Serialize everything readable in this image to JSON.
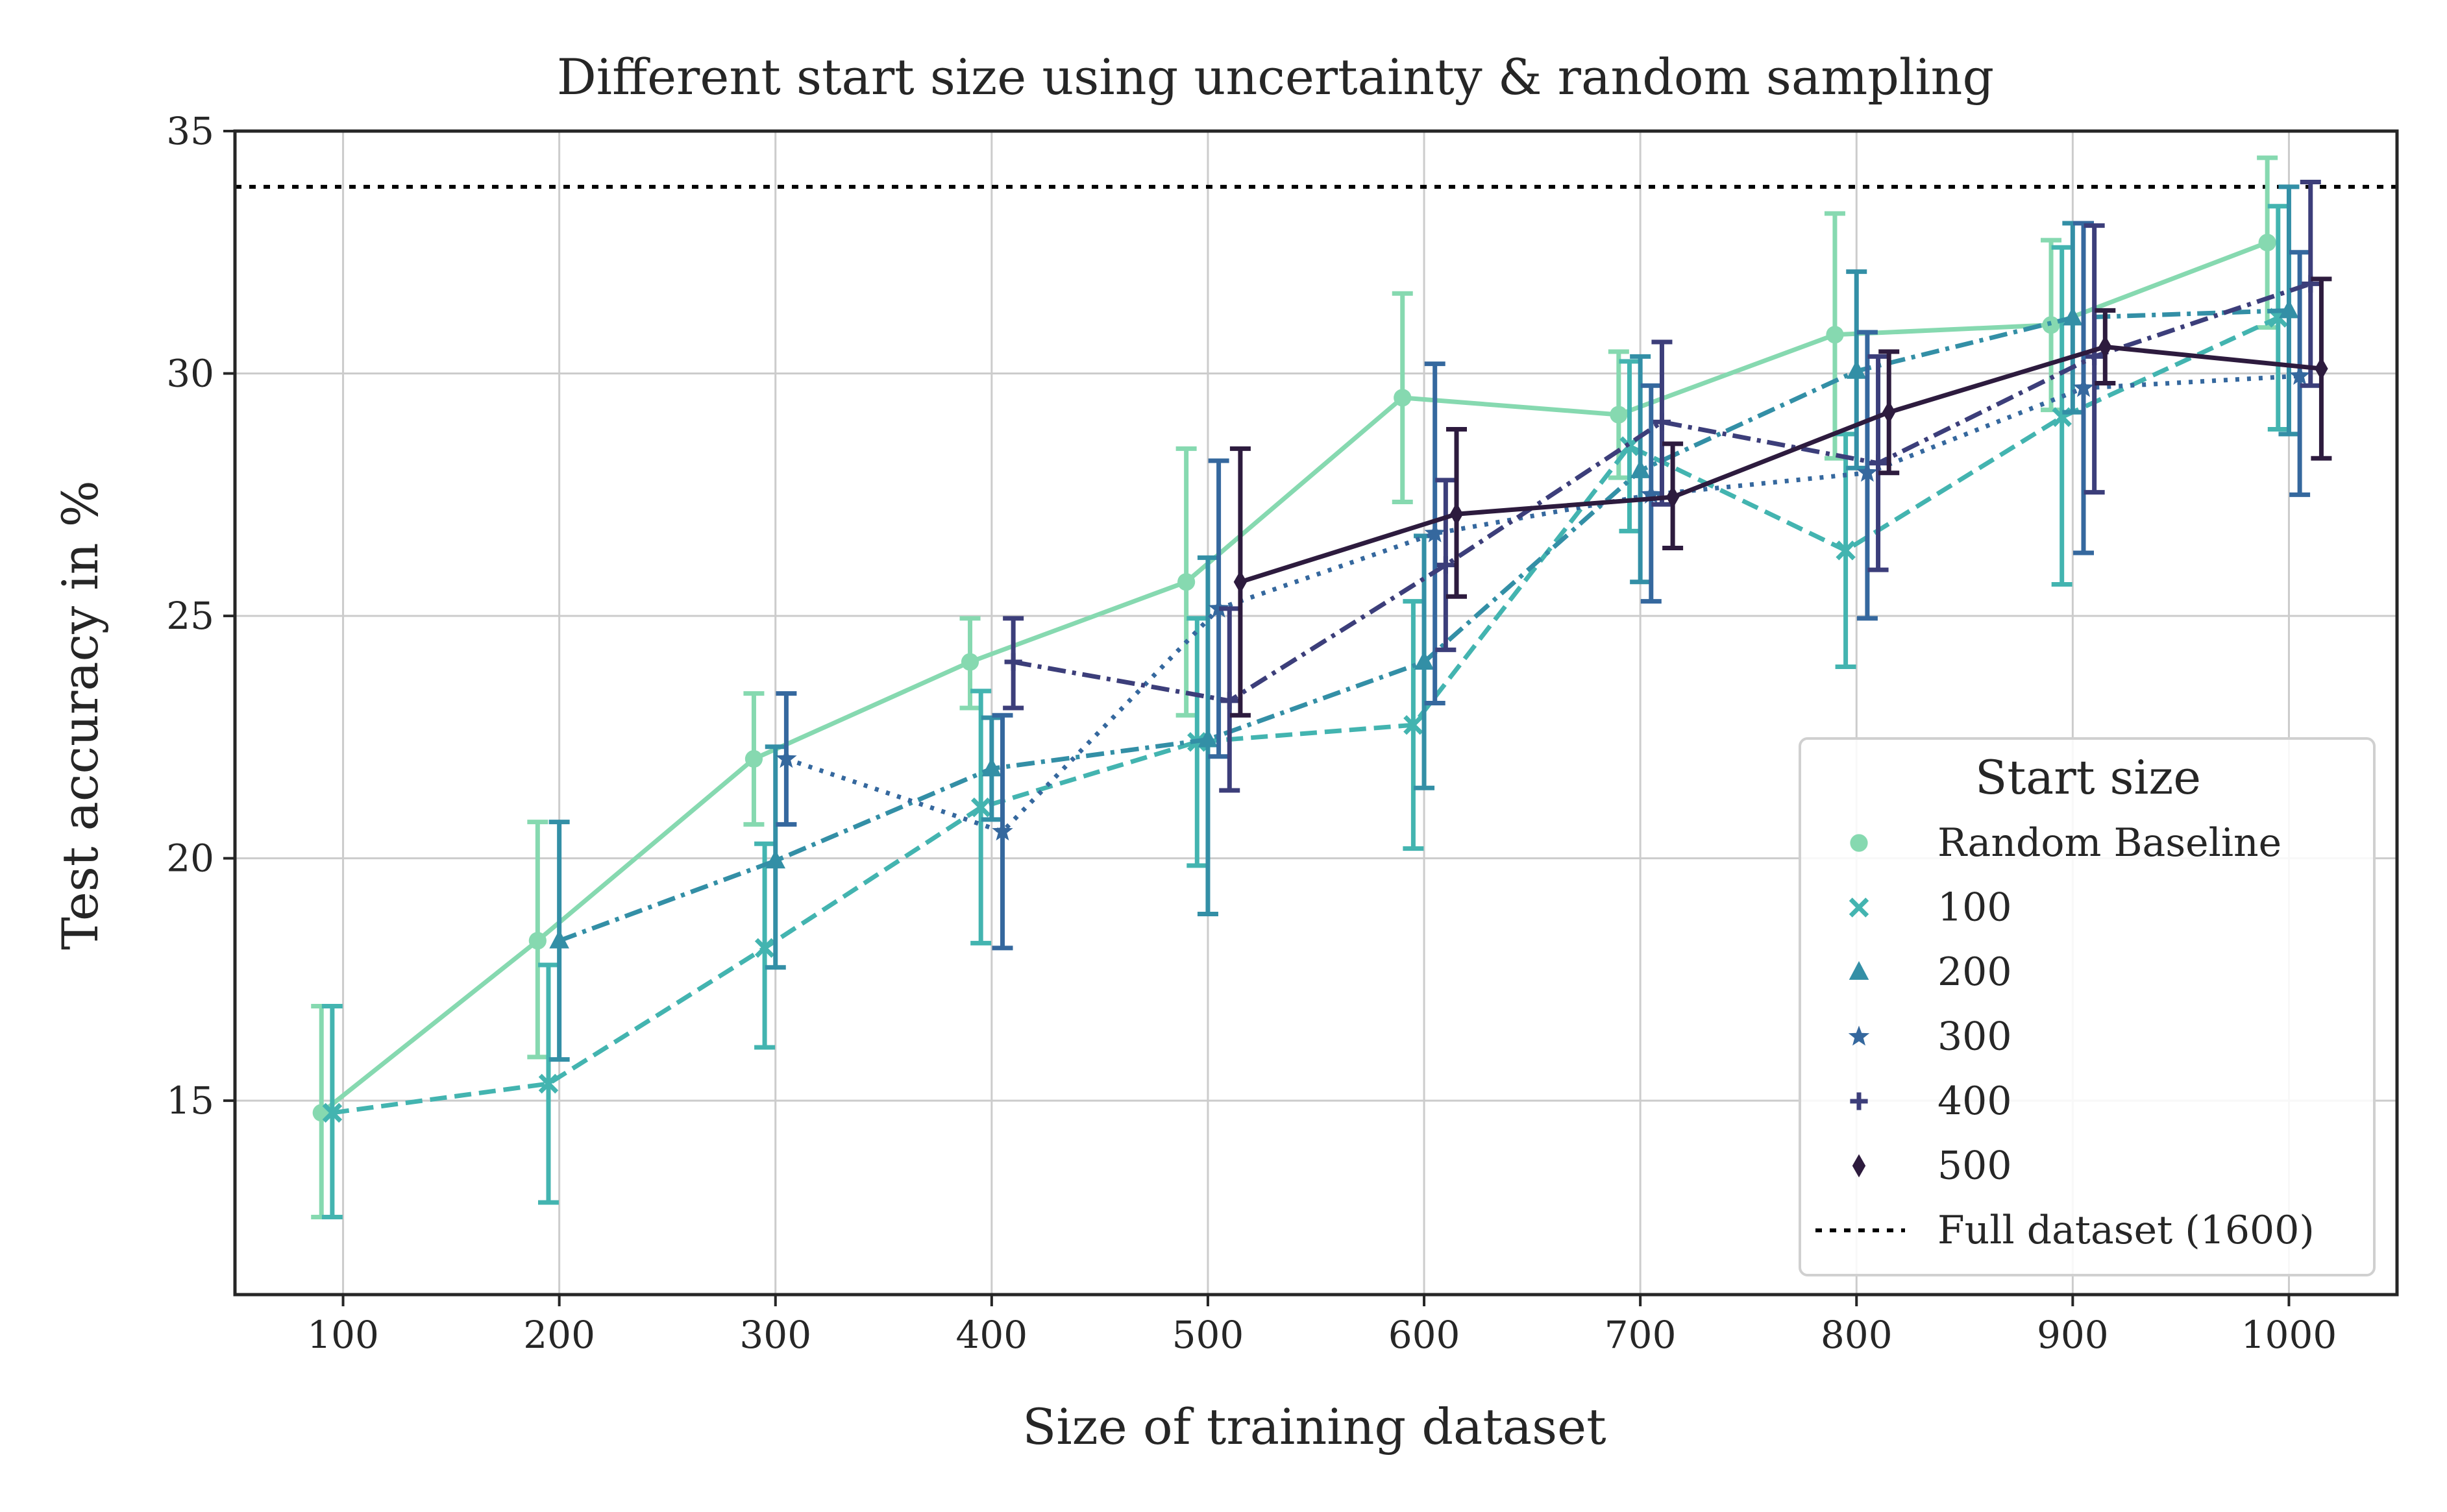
{
  "chart_data": {
    "type": "line",
    "title": "Different start size using uncertainty & random sampling",
    "xlabel": "Size of training dataset",
    "ylabel": "Test accuracy in %",
    "xlim": [
      50,
      1050
    ],
    "ylim": [
      11,
      35
    ],
    "x_ticks": [
      100,
      200,
      300,
      400,
      500,
      600,
      700,
      800,
      900,
      1000
    ],
    "y_ticks": [
      15,
      20,
      25,
      30,
      35
    ],
    "grid": true,
    "legend": {
      "title": "Start size",
      "position": "lower-right"
    },
    "reference_line": {
      "name": "Full dataset (1600)",
      "y": 33.85,
      "style": "dotted",
      "color": "#000000"
    },
    "series": [
      {
        "name": "Random Baseline",
        "color": "#86d9b0",
        "marker": "circle",
        "dash": "solid",
        "points": [
          {
            "x": 90,
            "y": 14.75,
            "lo": 12.6,
            "hi": 16.95
          },
          {
            "x": 190,
            "y": 18.3,
            "lo": 15.9,
            "hi": 20.75
          },
          {
            "x": 290,
            "y": 22.05,
            "lo": 20.7,
            "hi": 23.4
          },
          {
            "x": 390,
            "y": 24.05,
            "lo": 23.1,
            "hi": 24.95
          },
          {
            "x": 490,
            "y": 25.7,
            "lo": 22.95,
            "hi": 28.45
          },
          {
            "x": 590,
            "y": 29.5,
            "lo": 27.35,
            "hi": 31.65
          },
          {
            "x": 690,
            "y": 29.15,
            "lo": 27.85,
            "hi": 30.45
          },
          {
            "x": 790,
            "y": 30.8,
            "lo": 28.25,
            "hi": 33.3
          },
          {
            "x": 890,
            "y": 31.0,
            "lo": 29.25,
            "hi": 32.75
          },
          {
            "x": 990,
            "y": 32.7,
            "lo": 30.95,
            "hi": 34.45
          }
        ]
      },
      {
        "name": "100",
        "color": "#43b4b0",
        "marker": "x",
        "dash": "dashed",
        "points": [
          {
            "x": 95,
            "y": 14.75,
            "lo": 12.6,
            "hi": 16.95
          },
          {
            "x": 195,
            "y": 15.35,
            "lo": 12.9,
            "hi": 17.8
          },
          {
            "x": 295,
            "y": 18.15,
            "lo": 16.1,
            "hi": 20.3
          },
          {
            "x": 395,
            "y": 21.05,
            "lo": 18.25,
            "hi": 23.45
          },
          {
            "x": 495,
            "y": 22.4,
            "lo": 19.85,
            "hi": 24.95
          },
          {
            "x": 595,
            "y": 22.75,
            "lo": 20.2,
            "hi": 25.3
          },
          {
            "x": 695,
            "y": 28.5,
            "lo": 26.75,
            "hi": 30.25
          },
          {
            "x": 795,
            "y": 26.35,
            "lo": 23.95,
            "hi": 28.75
          },
          {
            "x": 895,
            "y": 29.1,
            "lo": 25.65,
            "hi": 32.6
          },
          {
            "x": 995,
            "y": 31.15,
            "lo": 28.85,
            "hi": 33.45
          }
        ]
      },
      {
        "name": "200",
        "color": "#338fa6",
        "marker": "triangle",
        "dash": "dashdot",
        "points": [
          {
            "x": 200,
            "y": 18.3,
            "lo": 15.85,
            "hi": 20.75
          },
          {
            "x": 300,
            "y": 19.95,
            "lo": 17.75,
            "hi": 22.3
          },
          {
            "x": 400,
            "y": 21.85,
            "lo": 20.8,
            "hi": 22.9
          },
          {
            "x": 500,
            "y": 22.45,
            "lo": 18.85,
            "hi": 26.2
          },
          {
            "x": 600,
            "y": 24.05,
            "lo": 21.45,
            "hi": 26.65
          },
          {
            "x": 700,
            "y": 28.0,
            "lo": 25.7,
            "hi": 30.35
          },
          {
            "x": 800,
            "y": 30.05,
            "lo": 28.05,
            "hi": 32.1
          },
          {
            "x": 900,
            "y": 31.15,
            "lo": 29.2,
            "hi": 33.1
          },
          {
            "x": 1000,
            "y": 31.3,
            "lo": 28.75,
            "hi": 33.85
          }
        ]
      },
      {
        "name": "300",
        "color": "#35689e",
        "marker": "star",
        "dash": "dotted",
        "points": [
          {
            "x": 305,
            "y": 22.05,
            "lo": 20.7,
            "hi": 23.4
          },
          {
            "x": 405,
            "y": 20.55,
            "lo": 18.15,
            "hi": 22.95
          },
          {
            "x": 505,
            "y": 25.15,
            "lo": 22.1,
            "hi": 28.2
          },
          {
            "x": 605,
            "y": 26.7,
            "lo": 23.2,
            "hi": 30.2
          },
          {
            "x": 705,
            "y": 27.5,
            "lo": 25.3,
            "hi": 29.75
          },
          {
            "x": 805,
            "y": 27.95,
            "lo": 24.95,
            "hi": 30.85
          },
          {
            "x": 905,
            "y": 29.7,
            "lo": 26.3,
            "hi": 33.1
          },
          {
            "x": 1005,
            "y": 29.95,
            "lo": 27.5,
            "hi": 32.5
          }
        ]
      },
      {
        "name": "400",
        "color": "#3c3e7a",
        "marker": "plus",
        "dash": "dashdot",
        "points": [
          {
            "x": 410,
            "y": 24.05,
            "lo": 23.1,
            "hi": 24.95
          },
          {
            "x": 510,
            "y": 23.25,
            "lo": 21.4,
            "hi": 25.15
          },
          {
            "x": 610,
            "y": 26.05,
            "lo": 24.3,
            "hi": 27.8
          },
          {
            "x": 710,
            "y": 29.0,
            "lo": 27.3,
            "hi": 30.65
          },
          {
            "x": 810,
            "y": 28.15,
            "lo": 25.95,
            "hi": 30.35
          },
          {
            "x": 910,
            "y": 30.35,
            "lo": 27.55,
            "hi": 33.05
          },
          {
            "x": 1010,
            "y": 31.85,
            "lo": 29.75,
            "hi": 33.95
          }
        ]
      },
      {
        "name": "500",
        "color": "#2d1b3e",
        "marker": "diamond",
        "dash": "solid",
        "points": [
          {
            "x": 515,
            "y": 25.7,
            "lo": 22.95,
            "hi": 28.45
          },
          {
            "x": 615,
            "y": 27.1,
            "lo": 25.4,
            "hi": 28.85
          },
          {
            "x": 715,
            "y": 27.45,
            "lo": 26.4,
            "hi": 28.55
          },
          {
            "x": 815,
            "y": 29.2,
            "lo": 27.95,
            "hi": 30.45
          },
          {
            "x": 915,
            "y": 30.55,
            "lo": 29.8,
            "hi": 31.3
          },
          {
            "x": 1015,
            "y": 30.1,
            "lo": 28.25,
            "hi": 31.95
          }
        ]
      }
    ]
  }
}
